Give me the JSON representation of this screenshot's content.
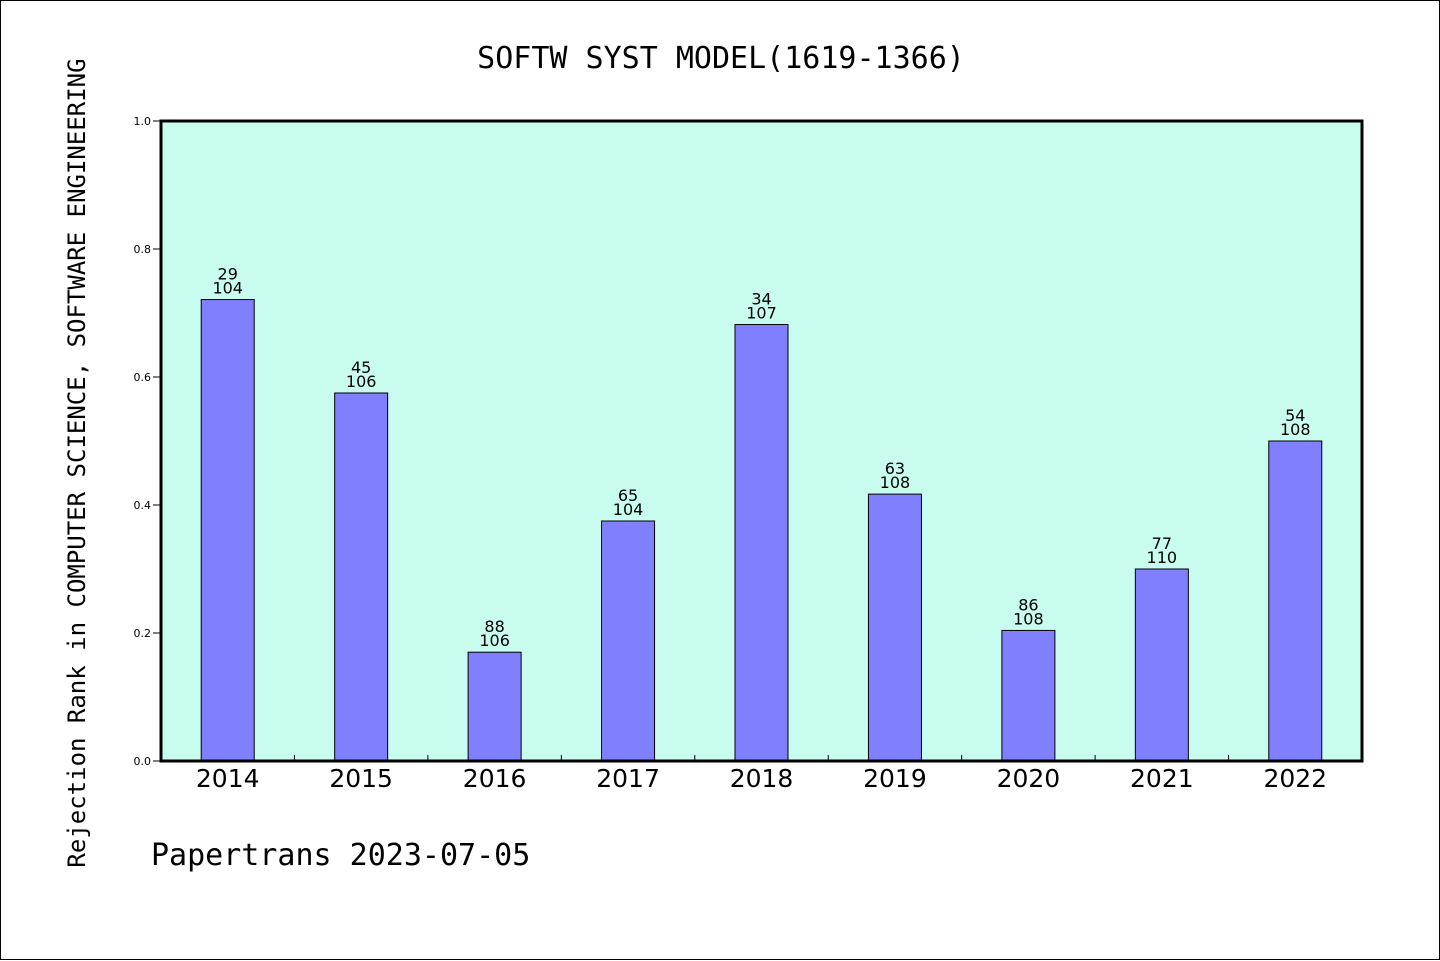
{
  "chart_data": {
    "type": "bar",
    "title": "SOFTW SYST MODEL(1619-1366)",
    "ylabel": "Rejection Rank in COMPUTER SCIENCE, SOFTWARE ENGINEERING",
    "xlabel": "",
    "categories": [
      "2014",
      "2015",
      "2016",
      "2017",
      "2018",
      "2019",
      "2020",
      "2021",
      "2022"
    ],
    "values": [
      0.721,
      0.575,
      0.17,
      0.375,
      0.682,
      0.417,
      0.204,
      0.3,
      0.5
    ],
    "bar_labels": [
      [
        "29",
        "104"
      ],
      [
        "45",
        "106"
      ],
      [
        "88",
        "106"
      ],
      [
        "65",
        "104"
      ],
      [
        "34",
        "107"
      ],
      [
        "63",
        "108"
      ],
      [
        "86",
        "108"
      ],
      [
        "77",
        "110"
      ],
      [
        "54",
        "108"
      ]
    ],
    "ylim": [
      0.0,
      1.0
    ],
    "yticks": [
      "0.0",
      "0.2",
      "0.4",
      "0.6",
      "0.8",
      "1.0"
    ],
    "grid": false,
    "colors": {
      "bar_fill": "#8080ff",
      "plot_background": "#c8fcef",
      "axes": "#000000"
    },
    "footer": "Papertrans 2023-07-05"
  }
}
